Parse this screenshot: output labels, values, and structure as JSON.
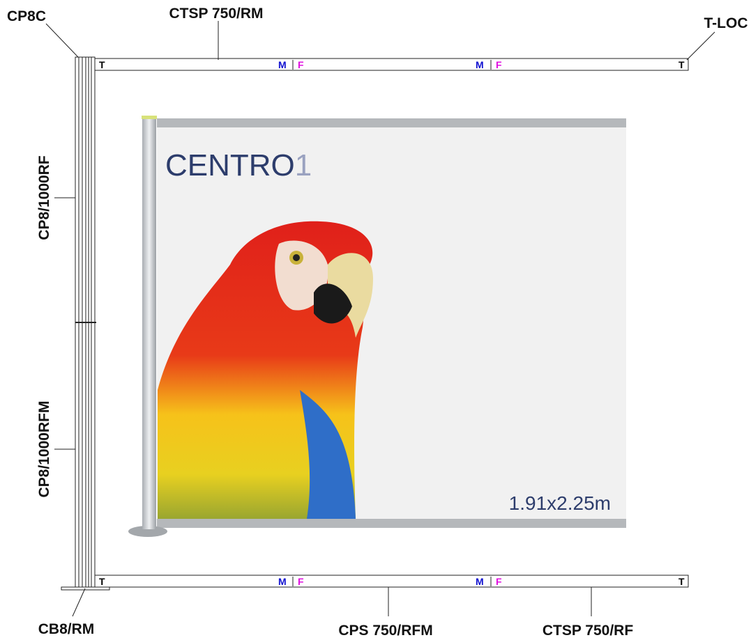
{
  "labels": {
    "post_cap": "CP8C",
    "top_beam": "CTSP 750/RM",
    "end_lock": "T-LOC",
    "upper_post": "CP8/1000RF",
    "lower_post": "CP8/1000RFM",
    "base": "CB8/RM",
    "bottom_middle_beam": "CPS 750/RFM",
    "bottom_right_beam": "CTSP 750/RF"
  },
  "beams": {
    "top": {
      "ends": [
        "T",
        "T"
      ],
      "joints": [
        [
          "M",
          "F"
        ],
        [
          "M",
          "F"
        ]
      ]
    },
    "bottom": {
      "ends": [
        "T",
        "T"
      ],
      "joints": [
        [
          "M",
          "F"
        ],
        [
          "M",
          "F"
        ]
      ]
    }
  },
  "banner": {
    "brand": "CENTRO",
    "brand_suffix": "1",
    "size": "1.91x2.25m"
  }
}
